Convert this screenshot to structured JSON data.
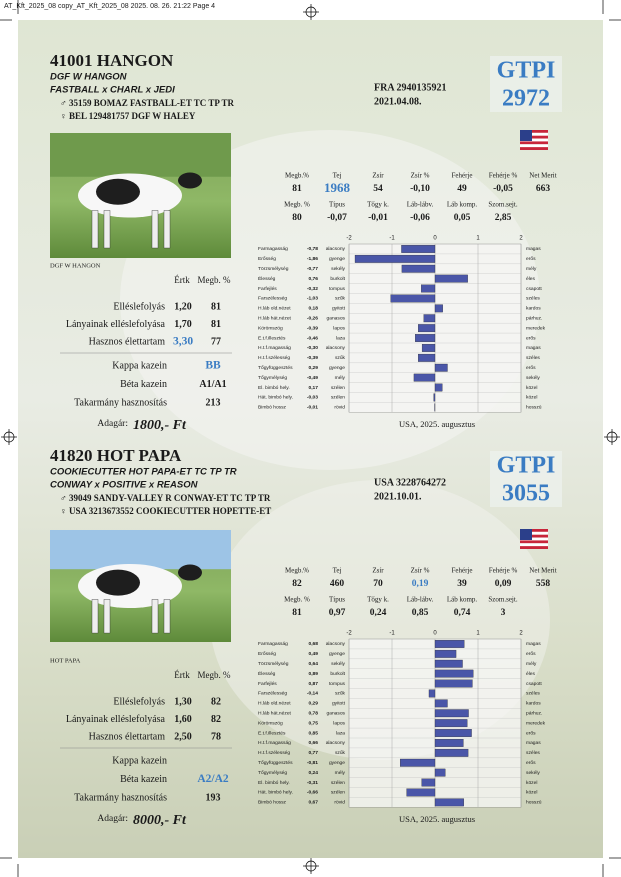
{
  "header": "AT_Kft_2025_08 copy_AT_Kft_2025_08  2025. 08. 26.  21:22  Page 4",
  "bulls": [
    {
      "title": "41001 HANGON",
      "pedigree": [
        "DGF W HANGON",
        "FASTBALL x CHARL x JEDI"
      ],
      "sire": "♂ 35159 BOMAZ FASTBALL-ET TC TP TR",
      "dam": "♀ BEL 129481757 DGF W HALEY",
      "reg": "FRA 2940135921",
      "date": "2021.04.08.",
      "index_label": "GTPI",
      "index_value": "2972",
      "photo_caption": "DGF W HANGON",
      "stats": [
        {
          "headers": [
            "Megb.%",
            "Tej",
            "Zsír",
            "Zsír %",
            "Fehérje",
            "Fehérje %",
            "Net Merit"
          ],
          "values": [
            {
              "text": "81"
            },
            {
              "text": "1968",
              "highlight": true
            },
            {
              "text": "54"
            },
            {
              "text": "-0,10"
            },
            {
              "text": "49"
            },
            {
              "text": "-0,05"
            },
            {
              "text": "663"
            }
          ]
        },
        {
          "headers": [
            "Megb. %",
            "Típus",
            "Tőgy k.",
            "Láb-lábv.",
            "Láb komp.",
            "Szom.sejt."
          ],
          "values": [
            {
              "text": "80"
            },
            {
              "text": "-0,07"
            },
            {
              "text": "-0,01"
            },
            {
              "text": "-0,06"
            },
            {
              "text": "0,05"
            },
            {
              "text": "2,85"
            }
          ]
        }
      ],
      "table_headers": [
        "Értk",
        "Megb. %"
      ],
      "rows": [
        {
          "label": "Elléslefolyás",
          "value": {
            "text": "1,20"
          },
          "reliability": "81"
        },
        {
          "label": "Lányainak elléslefolyása",
          "value": {
            "text": "1,70"
          },
          "reliability": "81"
        },
        {
          "label": "Hasznos élettartam",
          "value": {
            "text": "3,30",
            "highlight": true
          },
          "reliability": "77"
        }
      ],
      "extras": [
        {
          "label": "Kappa kazein",
          "value": {
            "text": "BB",
            "highlight": true
          }
        },
        {
          "label": "Béta kazein",
          "value": {
            "text": "A1/A1"
          }
        },
        {
          "label": "Takarmány hasznosítás",
          "value": {
            "text": "213"
          }
        }
      ],
      "price_label": "Adagár:",
      "price": "1800,- Ft",
      "linear": {
        "type": "bar",
        "categories": [
          "Farmagasság",
          "Erősség",
          "Törzsmélység",
          "Élesség",
          "Farfejlés",
          "Farszélesség",
          "H.láb old.nézet",
          "H.láb hát.nézet",
          "Körömszög",
          "E.t.f.illesztés",
          "H.t.f.magasság",
          "H.t.f.szélesség",
          "Tőgyfüggesztés",
          "Tőgymélység",
          "El. bimbó hely.",
          "Hát. bimbó hely.",
          "Bimbó hossz"
        ],
        "values": [
          -0.78,
          -1.86,
          -0.77,
          0.76,
          -0.32,
          -1.03,
          0.18,
          -0.26,
          -0.39,
          -0.46,
          -0.3,
          -0.39,
          0.29,
          -0.49,
          0.17,
          -0.03,
          -0.01
        ],
        "value_labels": [
          "-0,78",
          "-1,86",
          "-0,77",
          "0,76",
          "-0,32",
          "-1,03",
          "0,18",
          "-0,26",
          "-0,39",
          "-0,46",
          "-0,30",
          "-0,39",
          "0,29",
          "-0,49",
          "0,17",
          "-0,03",
          "-0,01"
        ],
        "low": [
          "alacsony",
          "gyenge",
          "sekély",
          "burkolt",
          "tompus",
          "szűk",
          "gyitott",
          "ganasos",
          "lapos",
          "laza",
          "alacsony",
          "szűk",
          "gyenge",
          "mély",
          "szélen",
          "szélen",
          "rövid"
        ],
        "high": [
          "magas",
          "erős",
          "mély",
          "éles",
          "csapott",
          "széles",
          "kardos",
          "párhuz.",
          "meredek",
          "erős",
          "magas",
          "széles",
          "erős",
          "sekély",
          "közel",
          "közel",
          "hosszú"
        ],
        "xlim": [
          -2,
          2
        ],
        "xticks": [
          -2,
          -1,
          0,
          1,
          2
        ],
        "color": "#4a56a8",
        "caption": "USA, 2025. augusztus"
      }
    },
    {
      "title": "41820 HOT PAPA",
      "pedigree": [
        "COOKIECUTTER HOT PAPA-ET TC TP TR",
        "CONWAY x POSITIVE x REASON"
      ],
      "sire": "♂ 39049 SANDY-VALLEY R CONWAY-ET TC TP TR",
      "dam": "♀ USA 3213673552 COOKIECUTTER HOPETTE-ET",
      "reg": "USA 3228764272",
      "date": "2021.10.01.",
      "index_label": "GTPI",
      "index_value": "3055",
      "photo_caption": "HOT PAPA",
      "stats": [
        {
          "headers": [
            "Megb.%",
            "Tej",
            "Zsír",
            "Zsír %",
            "Fehérje",
            "Fehérje %",
            "Net Merit"
          ],
          "values": [
            {
              "text": "82"
            },
            {
              "text": "460"
            },
            {
              "text": "70"
            },
            {
              "text": "0,19",
              "highlight": true
            },
            {
              "text": "39"
            },
            {
              "text": "0,09"
            },
            {
              "text": "558"
            }
          ]
        },
        {
          "headers": [
            "Megb. %",
            "Típus",
            "Tőgy k.",
            "Láb-lábv.",
            "Láb komp.",
            "Szom.sejt."
          ],
          "values": [
            {
              "text": "81"
            },
            {
              "text": "0,97"
            },
            {
              "text": "0,24"
            },
            {
              "text": "0,85"
            },
            {
              "text": "0,74"
            },
            {
              "text": "3"
            }
          ]
        }
      ],
      "table_headers": [
        "Értk",
        "Megb. %"
      ],
      "rows": [
        {
          "label": "Elléslefolyás",
          "value": {
            "text": "1,30"
          },
          "reliability": "82"
        },
        {
          "label": "Lányainak elléslefolyása",
          "value": {
            "text": "1,60"
          },
          "reliability": "82"
        },
        {
          "label": "Hasznos élettartam",
          "value": {
            "text": "2,50"
          },
          "reliability": "78"
        }
      ],
      "extras": [
        {
          "label": "Kappa kazein"
        },
        {
          "label": "Béta kazein",
          "value": {
            "text": "A2/A2",
            "highlight": true
          }
        },
        {
          "label": "Takarmány hasznosítás",
          "value": {
            "text": "193"
          }
        }
      ],
      "price_label": "Adagár:",
      "price": "8000,- Ft",
      "linear": {
        "type": "bar",
        "categories": [
          "Farmagasság",
          "Erősség",
          "Törzsmélység",
          "Élesség",
          "Farfejlés",
          "Farszélesség",
          "H.láb old.nézet",
          "H.láb hát.nézet",
          "Körömszög",
          "E.t.f.illesztés",
          "H.t.f.magasság",
          "H.t.f.szélesség",
          "Tőgyfüggesztés",
          "Tőgymélység",
          "El. bimbó hely.",
          "Hát. bimbó hely.",
          "Bimbó hossz"
        ],
        "values": [
          0.68,
          0.49,
          0.64,
          0.89,
          0.87,
          -0.14,
          0.29,
          0.78,
          0.75,
          0.85,
          0.66,
          0.77,
          -0.81,
          0.24,
          -0.31,
          -0.66,
          0.67
        ],
        "value_labels": [
          "0,68",
          "0,49",
          "0,64",
          "0,89",
          "0,87",
          "-0,14",
          "0,29",
          "0,78",
          "0,75",
          "0,85",
          "0,66",
          "0,77",
          "-0,81",
          "0,24",
          "-0,31",
          "-0,66",
          "0,67"
        ],
        "low": [
          "alacsony",
          "gyenge",
          "sekély",
          "burkolt",
          "tompus",
          "szűk",
          "gyitott",
          "ganasos",
          "lapos",
          "laza",
          "alacsony",
          "szűk",
          "gyenge",
          "mély",
          "szélen",
          "szélen",
          "rövid"
        ],
        "high": [
          "magas",
          "erős",
          "mély",
          "éles",
          "csapott",
          "széles",
          "kardos",
          "párhuz.",
          "meredek",
          "erős",
          "magas",
          "széles",
          "erős",
          "sekély",
          "közel",
          "közel",
          "hosszú"
        ],
        "xlim": [
          -2,
          2
        ],
        "xticks": [
          -2,
          -1,
          0,
          1,
          2
        ],
        "color": "#4a56a8",
        "caption": "USA, 2025. augusztus"
      }
    }
  ]
}
